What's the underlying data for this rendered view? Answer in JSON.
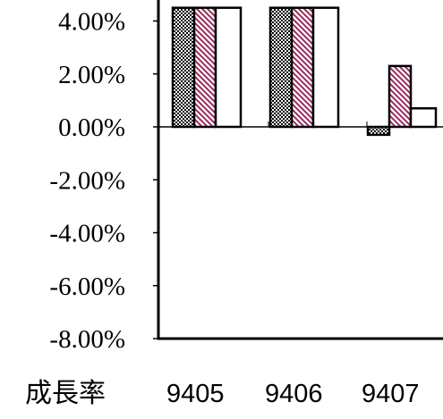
{
  "chart_data": {
    "type": "bar",
    "title": "",
    "xlabel": "",
    "ylabel": "",
    "row_label": "成長率",
    "categories": [
      "9405",
      "9406",
      "9407"
    ],
    "category_labels": [
      "9405",
      "9406",
      "9407"
    ],
    "y_ticks": [
      -0.08,
      -0.06,
      -0.04,
      -0.02,
      0.0,
      0.02,
      0.04
    ],
    "y_tick_labels": [
      "-8.00%",
      "-6.00%",
      "-4.00%",
      "-2.00%",
      "0.00%",
      "2.00%",
      "4.00%"
    ],
    "ylim": [
      -0.08,
      0.04
    ],
    "grid": false,
    "series": [
      {
        "values": [
          0.045,
          0.045,
          -0.003
        ],
        "pattern": "checker",
        "color": "#000000"
      },
      {
        "values": [
          0.045,
          0.045,
          0.023
        ],
        "pattern": "diagonal",
        "color": "#9c2a5e"
      },
      {
        "values": [
          0.045,
          0.045,
          0.007
        ],
        "pattern": "solid",
        "color": "#ffffff"
      }
    ]
  }
}
